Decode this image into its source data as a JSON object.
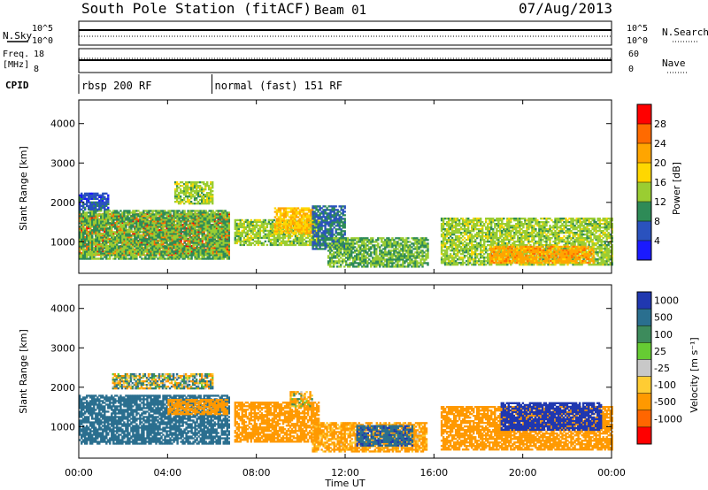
{
  "header": {
    "station": "South Pole Station (fitACF)",
    "beam": "Beam 01",
    "date": "07/Aug/2013"
  },
  "top_panels": {
    "nsky_label": "N.Sky",
    "nsky_tick_high": "10^5",
    "nsky_tick_low": "10^0",
    "nsearch_label": "N.Search",
    "nsearch_tick_high": "10^5",
    "nsearch_tick_low": "10^0",
    "freq_label": "Freq.",
    "freq_unit": "[MHz]",
    "freq_tick_high": "18",
    "freq_tick_low": "8",
    "nave_label": "Nave",
    "nave_tick_high": "60",
    "nave_tick_low": "0",
    "cpid_label": "CPID",
    "cpid_segments": [
      {
        "start_hour": 0,
        "label": "rbsp 200 RF"
      },
      {
        "start_hour": 6,
        "label": "normal (fast) 151 RF"
      }
    ]
  },
  "axes": {
    "x_ticks": [
      "00:00",
      "04:00",
      "08:00",
      "12:00",
      "16:00",
      "20:00",
      "00:00"
    ],
    "x_label": "Time UT",
    "y_label": "Slant Range [km]",
    "y_ticks": [
      "1000",
      "2000",
      "3000",
      "4000"
    ]
  },
  "colorbars": {
    "power_label": "Power [dB]",
    "power_ticks": [
      "4",
      "8",
      "12",
      "16",
      "20",
      "24",
      "28"
    ],
    "velocity_label": "Velocity  [m s⁻¹]",
    "velocity_ticks": [
      "1000",
      "500",
      "100",
      "25",
      "-25",
      "-100",
      "-500",
      "-1000"
    ]
  },
  "colors": {
    "power_scale": [
      "#1a1aff",
      "#2a52be",
      "#2e8b57",
      "#9acd32",
      "#ffd700",
      "#ffa500",
      "#ff6a00",
      "#ff0000"
    ],
    "velocity_scale": [
      "#2038b0",
      "#2a6f8f",
      "#3d8b5c",
      "#66cc33",
      "#c8c8c8",
      "#ffcc33",
      "#ff9900",
      "#ff6600",
      "#ff0000"
    ]
  },
  "chart_data": [
    {
      "type": "heatmap",
      "name": "power",
      "x_unit": "hours UT",
      "xlim": [
        0,
        24
      ],
      "ylim": [
        200,
        4600
      ],
      "colorbar_range": [
        0,
        32
      ],
      "regions": [
        {
          "t0": 0.0,
          "t1": 6.8,
          "r0": 650,
          "r1": 1700,
          "v": 26
        },
        {
          "t0": 0.0,
          "t1": 6.8,
          "r0": 550,
          "r1": 1800,
          "v": 12
        },
        {
          "t0": 0.0,
          "t1": 1.3,
          "r0": 1800,
          "r1": 2250,
          "v": 6
        },
        {
          "t0": 4.3,
          "t1": 6.0,
          "r0": 1950,
          "r1": 2500,
          "v": 14
        },
        {
          "t0": 7.0,
          "t1": 10.8,
          "r0": 900,
          "r1": 1550,
          "v": 14
        },
        {
          "t0": 8.8,
          "t1": 10.5,
          "r0": 1200,
          "r1": 1850,
          "v": 20
        },
        {
          "t0": 10.5,
          "t1": 12.0,
          "r0": 800,
          "r1": 1900,
          "v": 8
        },
        {
          "t0": 11.2,
          "t1": 15.7,
          "r0": 350,
          "r1": 1100,
          "v": 12
        },
        {
          "t0": 16.3,
          "t1": 24.0,
          "r0": 400,
          "r1": 1600,
          "v": 14
        },
        {
          "t0": 18.5,
          "t1": 23.2,
          "r0": 450,
          "r1": 900,
          "v": 22
        }
      ]
    },
    {
      "type": "heatmap",
      "name": "velocity",
      "x_unit": "hours UT",
      "xlim": [
        0,
        24
      ],
      "ylim": [
        200,
        4600
      ],
      "colorbar_range": [
        -1000,
        1000
      ],
      "regions": [
        {
          "t0": 0.0,
          "t1": 6.8,
          "r0": 550,
          "r1": 1800,
          "v": 300
        },
        {
          "t0": 1.5,
          "t1": 6.0,
          "r0": 1950,
          "r1": 2350,
          "v": 0
        },
        {
          "t0": 4.0,
          "t1": 6.7,
          "r0": 1300,
          "r1": 1700,
          "v": -300
        },
        {
          "t0": 7.0,
          "t1": 10.8,
          "r0": 600,
          "r1": 1600,
          "v": -300
        },
        {
          "t0": 9.5,
          "t1": 10.5,
          "r0": 1500,
          "r1": 1900,
          "v": -100
        },
        {
          "t0": 10.5,
          "t1": 15.7,
          "r0": 350,
          "r1": 1100,
          "v": -200
        },
        {
          "t0": 12.5,
          "t1": 15.0,
          "r0": 500,
          "r1": 1000,
          "v": 400
        },
        {
          "t0": 16.3,
          "t1": 24.0,
          "r0": 400,
          "r1": 1500,
          "v": -300
        },
        {
          "t0": 19.0,
          "t1": 23.5,
          "r0": 900,
          "r1": 1600,
          "v": 900
        }
      ]
    }
  ]
}
